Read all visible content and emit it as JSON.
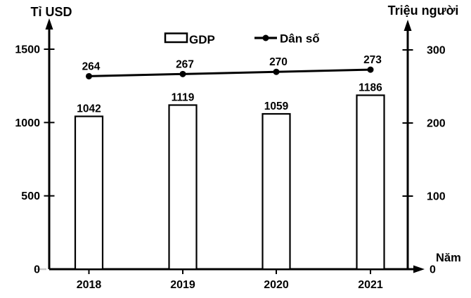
{
  "chart_data": {
    "type": "bar",
    "subtype": "bar-and-line-combo",
    "categories": [
      "2018",
      "2019",
      "2020",
      "2021"
    ],
    "series": [
      {
        "name": "GDP",
        "type": "bar",
        "axis": "left",
        "values": [
          1042,
          1119,
          1059,
          1186
        ]
      },
      {
        "name": "Dân số",
        "type": "line",
        "axis": "right",
        "values": [
          264,
          267,
          270,
          273
        ]
      }
    ],
    "left_axis": {
      "title": "Tỉ USD",
      "ticks": [
        0,
        500,
        1000,
        1500
      ],
      "range": [
        0,
        1700
      ]
    },
    "right_axis": {
      "title": "Triệu người",
      "ticks": [
        0,
        100,
        200,
        300
      ],
      "range": [
        0,
        340
      ]
    },
    "x_axis": {
      "title": "Năm"
    },
    "legend": {
      "position": "top",
      "entries": [
        "GDP",
        "Dân số"
      ]
    },
    "colors": {
      "bar_fill": "#ffffff",
      "stroke": "#000000",
      "text": "#000000",
      "background": "#ffffff",
      "zero_tick": "#c9c9c9"
    },
    "grid": "off"
  }
}
